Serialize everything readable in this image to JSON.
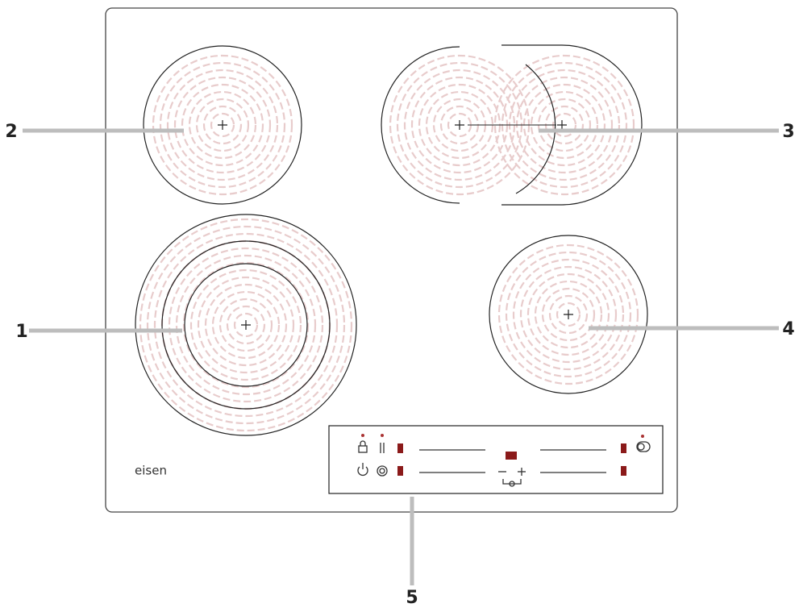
{
  "callouts": [
    "1",
    "2",
    "3",
    "4",
    "5"
  ],
  "brand": "eisen"
}
